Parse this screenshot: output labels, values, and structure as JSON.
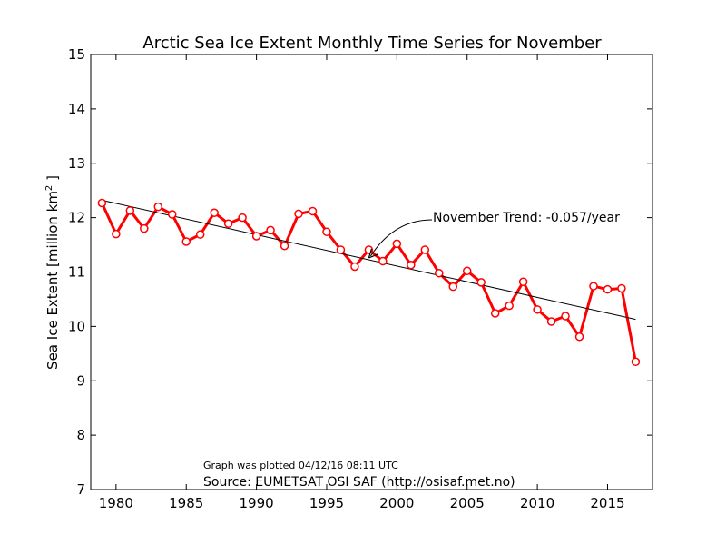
{
  "chart_data": {
    "type": "line",
    "title": "Arctic Sea Ice Extent Monthly Time Series for November",
    "xlabel": "",
    "ylabel_main": "Sea Ice Extent [million km",
    "ylabel_sup": "2",
    "ylabel_end": " ]",
    "xlim": [
      1978.2,
      2018.2
    ],
    "ylim": [
      7,
      15
    ],
    "xticks": [
      1980,
      1985,
      1990,
      1995,
      2000,
      2005,
      2010,
      2015
    ],
    "yticks": [
      7,
      8,
      9,
      10,
      11,
      12,
      13,
      14,
      15
    ],
    "grid": false,
    "series": [
      {
        "color": "#ff0000",
        "x": [
          1979,
          1980,
          1981,
          1982,
          1983,
          1984,
          1985,
          1986,
          1987,
          1988,
          1989,
          1990,
          1991,
          1992,
          1993,
          1994,
          1995,
          1996,
          1997,
          1998,
          1999,
          2000,
          2001,
          2002,
          2003,
          2004,
          2005,
          2006,
          2007,
          2008,
          2009,
          2010,
          2011,
          2012,
          2013,
          2014,
          2015,
          2016,
          2017
        ],
        "y": [
          12.27,
          11.7,
          12.13,
          11.8,
          12.2,
          12.06,
          11.56,
          11.69,
          12.09,
          11.89,
          12.0,
          11.66,
          11.77,
          11.48,
          12.07,
          12.12,
          11.74,
          11.41,
          11.1,
          11.41,
          11.2,
          11.52,
          11.13,
          11.41,
          10.98,
          10.73,
          11.02,
          10.81,
          10.24,
          10.38,
          10.82,
          10.31,
          10.09,
          10.19,
          9.81,
          10.74,
          10.68,
          10.7,
          9.35
        ]
      }
    ],
    "trend": {
      "color": "#000000",
      "x": [
        1979,
        2017
      ],
      "y": [
        12.32,
        10.13
      ]
    },
    "annotation": {
      "text": "November Trend: -0.057/year",
      "target_x": 1998,
      "target_y": 11.26
    },
    "footer": {
      "plotted": "Graph was plotted 04/12/16 08:11 UTC",
      "source": "Source: EUMETSAT OSI SAF (http://osisaf.met.no)"
    }
  }
}
